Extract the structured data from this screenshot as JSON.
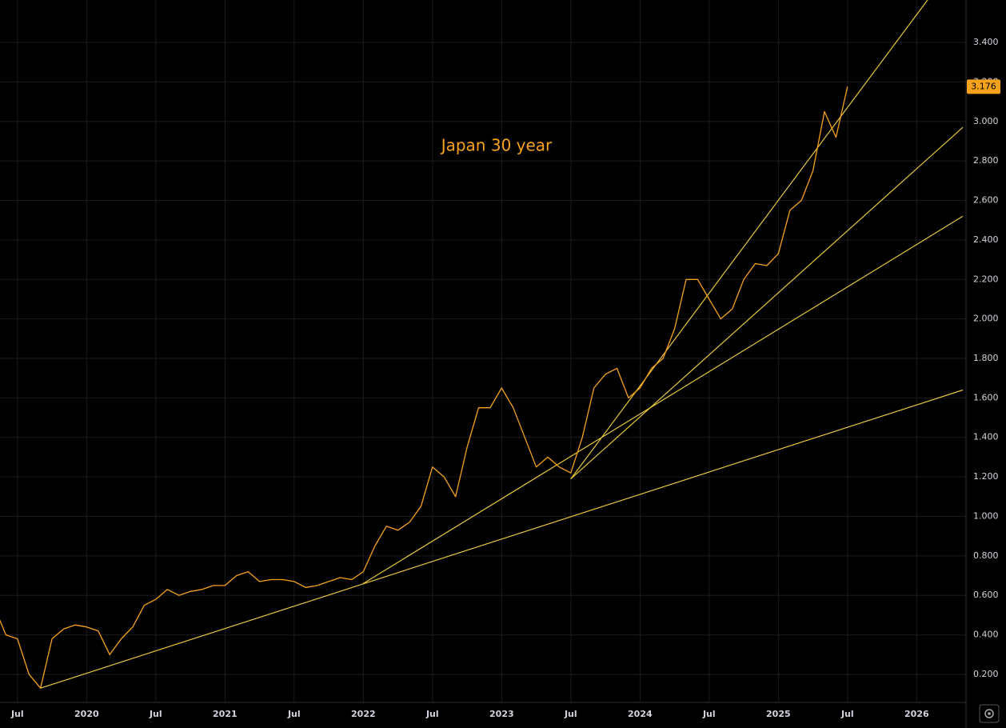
{
  "chart_data": {
    "type": "line",
    "annotation": "Japan 30 year",
    "x": [
      "2019-05",
      "2019-06",
      "2019-07",
      "2019-08",
      "2019-09",
      "2019-10",
      "2019-11",
      "2019-12",
      "2020-01",
      "2020-02",
      "2020-03",
      "2020-04",
      "2020-05",
      "2020-06",
      "2020-07",
      "2020-08",
      "2020-09",
      "2020-10",
      "2020-11",
      "2020-12",
      "2021-01",
      "2021-02",
      "2021-03",
      "2021-04",
      "2021-05",
      "2021-06",
      "2021-07",
      "2021-08",
      "2021-09",
      "2021-10",
      "2021-11",
      "2021-12",
      "2022-01",
      "2022-02",
      "2022-03",
      "2022-04",
      "2022-05",
      "2022-06",
      "2022-07",
      "2022-08",
      "2022-09",
      "2022-10",
      "2022-11",
      "2022-12",
      "2023-01",
      "2023-02",
      "2023-03",
      "2023-04",
      "2023-05",
      "2023-06",
      "2023-07",
      "2023-08",
      "2023-09",
      "2023-10",
      "2023-11",
      "2023-12",
      "2024-01",
      "2024-02",
      "2024-03",
      "2024-04",
      "2024-05",
      "2024-06",
      "2024-07",
      "2024-08",
      "2024-09",
      "2024-10",
      "2024-11",
      "2024-12",
      "2025-01",
      "2025-02",
      "2025-03",
      "2025-04",
      "2025-05",
      "2025-06",
      "2025-07"
    ],
    "series": [
      {
        "color": "#f7a21b",
        "values": [
          0.54,
          0.4,
          0.38,
          0.2,
          0.13,
          0.38,
          0.43,
          0.45,
          0.44,
          0.42,
          0.3,
          0.38,
          0.44,
          0.55,
          0.58,
          0.63,
          0.6,
          0.62,
          0.63,
          0.65,
          0.65,
          0.7,
          0.72,
          0.67,
          0.68,
          0.68,
          0.67,
          0.64,
          0.65,
          0.67,
          0.69,
          0.68,
          0.72,
          0.85,
          0.95,
          0.93,
          0.97,
          1.05,
          1.25,
          1.2,
          1.1,
          1.35,
          1.55,
          1.55,
          1.65,
          1.55,
          1.4,
          1.25,
          1.3,
          1.25,
          1.22,
          1.4,
          1.65,
          1.72,
          1.75,
          1.6,
          1.65,
          1.75,
          1.8,
          1.95,
          2.2,
          2.2,
          2.1,
          2.0,
          2.05,
          2.2,
          2.28,
          2.27,
          2.33,
          2.55,
          2.6,
          2.75,
          3.05,
          2.92,
          3.176
        ]
      }
    ],
    "trendlines": [
      {
        "color": "#e8c83a",
        "x": [
          "2019-09",
          "2026-05"
        ],
        "y": [
          0.13,
          1.64
        ]
      },
      {
        "color": "#e8c83a",
        "x": [
          "2022-01",
          "2026-05"
        ],
        "y": [
          0.66,
          2.52
        ]
      },
      {
        "color": "#e8c83a",
        "x": [
          "2023-07",
          "2026-05"
        ],
        "y": [
          1.19,
          2.97
        ]
      },
      {
        "color": "#e8c83a",
        "x": [
          "2023-07",
          "2026-02"
        ],
        "y": [
          1.19,
          3.62
        ]
      }
    ],
    "xlim": [
      "2019-05",
      "2026-05"
    ],
    "xticks": [
      {
        "value": "2019-07",
        "label": "Jul"
      },
      {
        "value": "2020-01",
        "label": "2020"
      },
      {
        "value": "2020-07",
        "label": "Jul"
      },
      {
        "value": "2021-01",
        "label": "2021"
      },
      {
        "value": "2021-07",
        "label": "Jul"
      },
      {
        "value": "2022-01",
        "label": "2022"
      },
      {
        "value": "2022-07",
        "label": "Jul"
      },
      {
        "value": "2023-01",
        "label": "2023"
      },
      {
        "value": "2023-07",
        "label": "Jul"
      },
      {
        "value": "2024-01",
        "label": "2024"
      },
      {
        "value": "2024-07",
        "label": "Jul"
      },
      {
        "value": "2025-01",
        "label": "2025"
      },
      {
        "value": "2025-07",
        "label": "Jul"
      },
      {
        "value": "2026-01",
        "label": "2026"
      }
    ],
    "ylim": [
      0.058,
      3.615
    ],
    "yticks": [
      {
        "value": 0.2,
        "label": "0.200"
      },
      {
        "value": 0.4,
        "label": "0.400"
      },
      {
        "value": 0.6,
        "label": "0.600"
      },
      {
        "value": 0.8,
        "label": "0.800"
      },
      {
        "value": 1.0,
        "label": "1.000"
      },
      {
        "value": 1.2,
        "label": "1.200"
      },
      {
        "value": 1.4,
        "label": "1.400"
      },
      {
        "value": 1.6,
        "label": "1.600"
      },
      {
        "value": 1.8,
        "label": "1.800"
      },
      {
        "value": 2.0,
        "label": "2.000"
      },
      {
        "value": 2.2,
        "label": "2.200"
      },
      {
        "value": 2.4,
        "label": "2.400"
      },
      {
        "value": 2.6,
        "label": "2.600"
      },
      {
        "value": 2.8,
        "label": "2.800"
      },
      {
        "value": 3.0,
        "label": "3.000"
      },
      {
        "value": 3.2,
        "label": "3.200"
      },
      {
        "value": 3.4,
        "label": "3.400"
      }
    ],
    "grid": true
  }
}
